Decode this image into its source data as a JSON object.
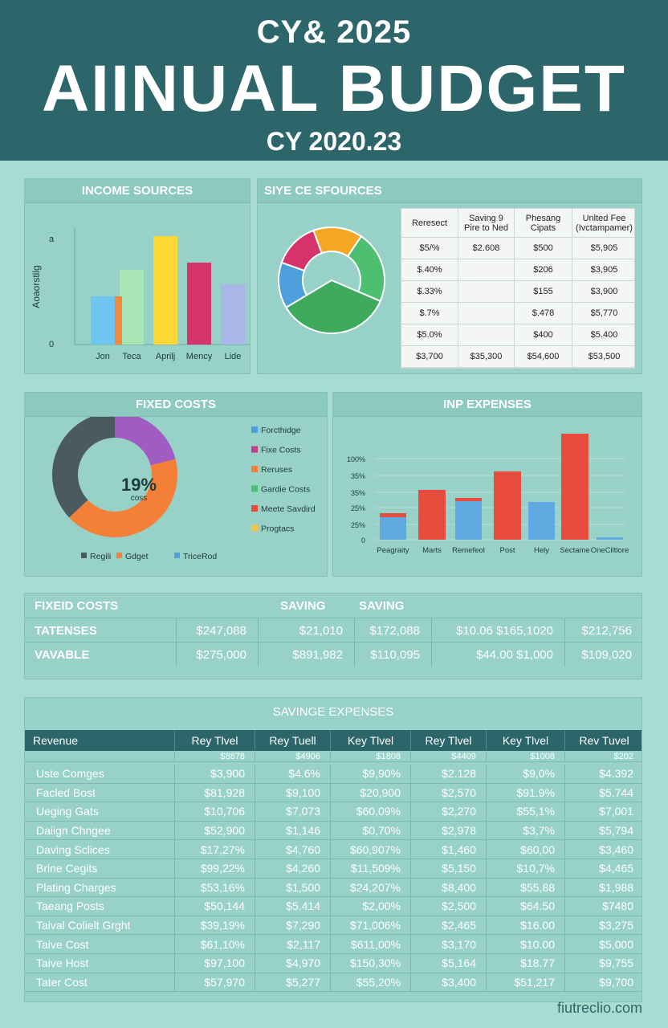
{
  "header": {
    "subtitle": "CY& 2025",
    "title": "AIINUAL BUDGET",
    "cy": "CY 2020.23"
  },
  "income_panel": {
    "title": "INCOME SOURCES"
  },
  "sources_panel": {
    "title": "SIYE CE SFOURCES"
  },
  "fixed_panel": {
    "title": "FIXED COSTS",
    "center_value": "19%",
    "center_label": "coss"
  },
  "expenses_panel": {
    "title": "INP EXPENSES"
  },
  "sources_table": {
    "headers": [
      "Reresect",
      "Saving 9\nPire to Ned",
      "Phesang\nCipats",
      "Unlted Fee\n(Ivctampamer)"
    ],
    "rows": [
      [
        "$5/%",
        "$2.608",
        "$500",
        "$5,905"
      ],
      [
        "$.40%",
        "",
        "$206",
        "$3,905"
      ],
      [
        "$.33%",
        "",
        "$155",
        "$3,900"
      ],
      [
        "$.7%",
        "",
        "$.478",
        "$5,770"
      ],
      [
        "$5.0%",
        "",
        "$400",
        "$5.400"
      ],
      [
        "$3,700",
        "$35,300",
        "$54,600",
        "$53,500"
      ]
    ]
  },
  "summary": {
    "header": [
      "FIXEID COSTS",
      "SAVING",
      "SAVING"
    ],
    "rows": [
      [
        "TATENSES",
        "$247,088",
        "$21,010",
        "$172,088",
        "$10.06  $165,1020",
        "$212,756"
      ],
      [
        "VAVABLE",
        "$275,000",
        "$891,982",
        "$110,095",
        "$44.00  $1,000",
        "$109,020"
      ]
    ]
  },
  "big_table": {
    "title": "SAVINGE EXPENSES",
    "headers": [
      "Revenue",
      "Rey Tlvel",
      "Rey Tuell",
      "Key Tlvel",
      "Rey Tlvel",
      "Key Tlvel",
      "Rev Tuvel"
    ],
    "top_row": [
      "",
      "$8878",
      "$4906",
      "$1808",
      "$4409",
      "$1008",
      "$202"
    ],
    "rows": [
      [
        "Uste Comges",
        "$3,900",
        "$4.6%",
        "$9,90%",
        "$2.128",
        "$9,0%",
        "$4.392"
      ],
      [
        "Facled Bost",
        "$81,928",
        "$9,100",
        "$20,900",
        "$2,570",
        "$91.9%",
        "$5.744"
      ],
      [
        "Ueging Gats",
        "$10,706",
        "$7,073",
        "$60,09%",
        "$2,270",
        "$55,1%",
        "$7,001"
      ],
      [
        "Daiign Chngee",
        "$52,900",
        "$1,146",
        "$0,70%",
        "$2,978",
        "$3,7%",
        "$5,794"
      ],
      [
        "Daving Sclices",
        "$17,27%",
        "$4,760",
        "$60,907%",
        "$1,460",
        "$60,00",
        "$3,460"
      ],
      [
        "Brine Cegits",
        "$99,22%",
        "$4,260",
        "$11,509%",
        "$5,150",
        "$10,7%",
        "$4,465"
      ],
      [
        "Plating Charges",
        "$53,16%",
        "$1,500",
        "$24,207%",
        "$8,400",
        "$55,88",
        "$1,988"
      ],
      [
        "Taeang Posts",
        "$50,144",
        "$5.414",
        "$2,00%",
        "$2,500",
        "$64.50",
        "$7480"
      ],
      [
        "Taival Colielt Grght",
        "$39,19%",
        "$7,290",
        "$71,006%",
        "$2,465",
        "$16.00",
        "$3,275"
      ],
      [
        "Taive Cost",
        "$61,10%",
        "$2,117",
        "$611,00%",
        "$3,170",
        "$10.00",
        "$5,000"
      ],
      [
        "Taive Host",
        "$97,100",
        "$4,970",
        "$150,30%",
        "$5,164",
        "$18.77",
        "$9,755"
      ],
      [
        "Tater Cost",
        "$57,970",
        "$5,277",
        "$55,20%",
        "$3,400",
        "$51,217",
        "$9,700"
      ]
    ]
  },
  "footer": {
    "brand": "fiutreclio.com"
  },
  "colors": {
    "header": "#2c666b",
    "background": "#a8dbd2",
    "panel": "#98d1c8"
  },
  "chart_data": [
    {
      "type": "bar",
      "title": "INCOME SOURCES",
      "ylabel": "Aoaorstilg",
      "y_ticks": [
        "a",
        "0"
      ],
      "categories": [
        "Jon",
        "Teca",
        "Aprilj",
        "Mency",
        "Lide"
      ],
      "series": [
        {
          "values": [
            40,
            62,
            90,
            68,
            50
          ]
        },
        {
          "values": [
            40,
            null,
            null,
            null,
            null
          ]
        }
      ],
      "colors": [
        "#6ec6f0",
        "#f08a3c",
        "#a8e6b5",
        "#fdd835",
        "#d6336c",
        "#a9b6e8"
      ]
    },
    {
      "type": "pie",
      "title": "SIYE CE SFOURCES",
      "values": [
        15,
        22,
        35,
        14,
        14
      ],
      "colors": [
        "#f5a623",
        "#4cbf70",
        "#3daa5c",
        "#4f9fdc",
        "#d6336c"
      ]
    },
    {
      "type": "pie",
      "title": "FIXED COSTS",
      "values": [
        37,
        42,
        21
      ],
      "colors": [
        "#4a5a5e",
        "#f47f37",
        "#a05cc0"
      ],
      "legend": [
        "Forcthidge",
        "Fixe Costs",
        "Reruses",
        "Gardie Costs",
        "Meete Savdird",
        "Progtacs"
      ],
      "legend_colors": [
        "#4f9fdc",
        "#c53c8f",
        "#f47f37",
        "#4cbf70",
        "#e74c3c",
        "#f5c542"
      ],
      "bottom_legend": [
        "Regili",
        "Gdget",
        "TriceRod"
      ],
      "bottom_legend_colors": [
        "#4a5a5e",
        "#f47f37",
        "#4f9fdc"
      ]
    },
    {
      "type": "bar",
      "title": "INP EXPENSES",
      "y_ticks": [
        "100%",
        "35%",
        "35%",
        "25%",
        "25%",
        "0"
      ],
      "categories": [
        "Peagraity",
        "Marts",
        "Remefeol",
        "Post",
        "Hely",
        "Sectame",
        "OneCiltlore"
      ],
      "series": [
        {
          "name": "",
          "values": [
            28,
            0,
            48,
            0,
            47,
            0,
            3
          ]
        },
        {
          "name": "",
          "values": [
            33,
            62,
            52,
            85,
            0,
            132,
            3
          ]
        }
      ],
      "colors": [
        "#5fa8e0",
        "#e74c3c"
      ]
    }
  ]
}
